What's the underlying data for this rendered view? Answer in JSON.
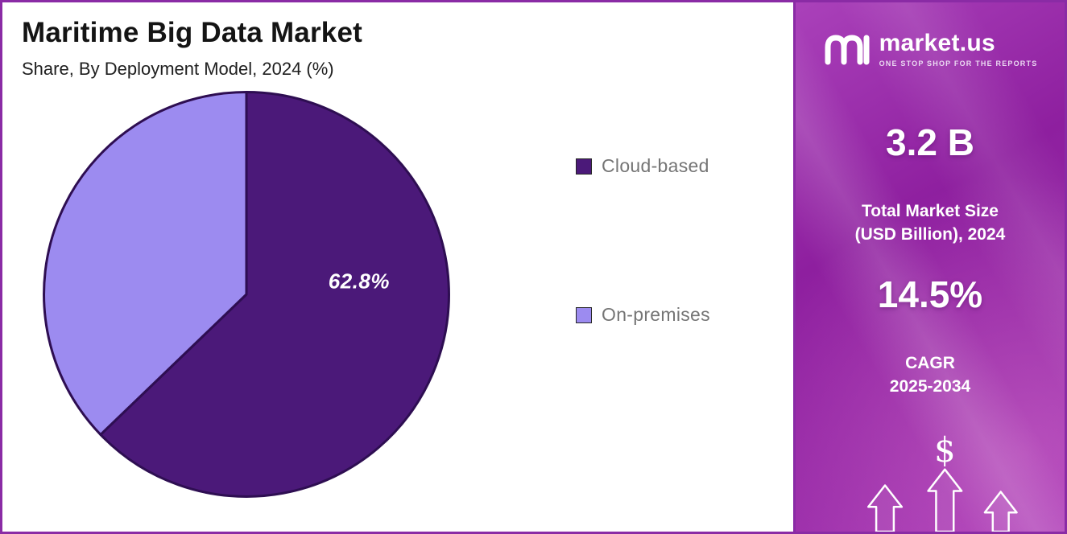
{
  "title": "Maritime Big Data Market",
  "subtitle": "Share, By Deployment Model, 2024 (%)",
  "chart_data": {
    "type": "pie",
    "title": "Maritime Big Data Market",
    "subtitle": "Share, By Deployment Model, 2024 (%)",
    "labels": [
      "Cloud-based",
      "On-premises"
    ],
    "values": [
      62.8,
      37.2
    ],
    "colors": [
      "#4B1979",
      "#9C8BF0"
    ],
    "slice_border_color": "#2E0E52",
    "start_angle_deg": -90,
    "data_label": "62.8%",
    "legend_position": "right"
  },
  "sidebar": {
    "logo": {
      "text": "market.us",
      "tagline": "ONE STOP SHOP FOR THE REPORTS",
      "icon": "market-us-logo-icon"
    },
    "stats": [
      {
        "value": "3.2 B",
        "label_lines": [
          "Total Market Size",
          "(USD Billion), 2024"
        ]
      },
      {
        "value": "14.5%",
        "label_lines": [
          "CAGR",
          "2025-2034"
        ]
      }
    ],
    "dollar_symbol": "$",
    "background_gradient": [
      "#AA41BA",
      "#8E1F9F"
    ]
  }
}
